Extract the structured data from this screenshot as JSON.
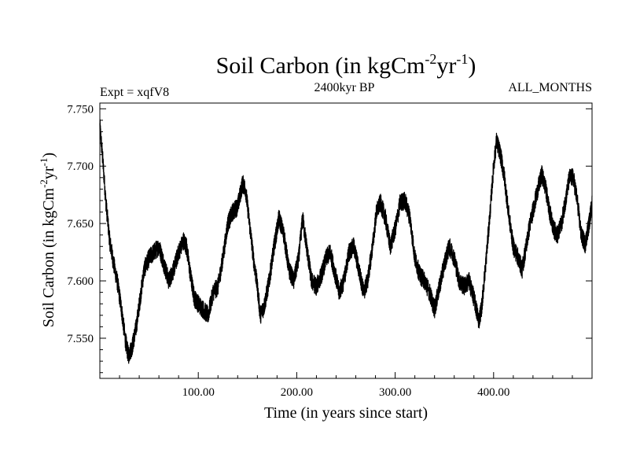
{
  "chart_data": {
    "type": "line",
    "title": {
      "main": "Soil Carbon (in kgCm",
      "sup1": "-2",
      "mid": "yr",
      "sup2": "-1",
      "end": ")"
    },
    "subtitle_left": "Expt = xqfV8",
    "subtitle_center": "2400kyr BP",
    "subtitle_right": "ALL_MONTHS",
    "xlabel": "Time (in years since start)",
    "ylabel": {
      "main": "Soil Carbon (in kgCm",
      "sup1": "-2",
      "mid": "yr",
      "sup2": "-1",
      "end": ")"
    },
    "xlim": [
      0,
      500
    ],
    "ylim": [
      7.515,
      7.755
    ],
    "x_ticks": [
      100,
      200,
      300,
      400
    ],
    "x_tick_labels": [
      "100.00",
      "200.00",
      "300.00",
      "400.00"
    ],
    "y_ticks": [
      7.55,
      7.6,
      7.65,
      7.7,
      7.75
    ],
    "y_tick_labels": [
      "7.550",
      "7.600",
      "7.650",
      "7.700",
      "7.750"
    ],
    "grid": false,
    "series": [
      {
        "name": "Soil Carbon",
        "color": "#000000",
        "noise_amplitude": 0.008,
        "anchors": [
          [
            0,
            7.735
          ],
          [
            3,
            7.705
          ],
          [
            6,
            7.67
          ],
          [
            10,
            7.635
          ],
          [
            14,
            7.615
          ],
          [
            18,
            7.598
          ],
          [
            22,
            7.575
          ],
          [
            26,
            7.548
          ],
          [
            29,
            7.535
          ],
          [
            33,
            7.543
          ],
          [
            37,
            7.56
          ],
          [
            41,
            7.585
          ],
          [
            45,
            7.61
          ],
          [
            50,
            7.62
          ],
          [
            55,
            7.625
          ],
          [
            60,
            7.63
          ],
          [
            65,
            7.615
          ],
          [
            70,
            7.6
          ],
          [
            75,
            7.61
          ],
          [
            80,
            7.625
          ],
          [
            85,
            7.635
          ],
          [
            88,
            7.63
          ],
          [
            92,
            7.605
          ],
          [
            96,
            7.585
          ],
          [
            100,
            7.58
          ],
          [
            105,
            7.575
          ],
          [
            110,
            7.57
          ],
          [
            115,
            7.59
          ],
          [
            120,
            7.595
          ],
          [
            125,
            7.62
          ],
          [
            130,
            7.65
          ],
          [
            135,
            7.66
          ],
          [
            140,
            7.665
          ],
          [
            145,
            7.685
          ],
          [
            148,
            7.68
          ],
          [
            152,
            7.65
          ],
          [
            156,
            7.62
          ],
          [
            160,
            7.595
          ],
          [
            163,
            7.57
          ],
          [
            167,
            7.578
          ],
          [
            172,
            7.6
          ],
          [
            177,
            7.63
          ],
          [
            182,
            7.655
          ],
          [
            187,
            7.64
          ],
          [
            192,
            7.61
          ],
          [
            197,
            7.6
          ],
          [
            202,
            7.62
          ],
          [
            206,
            7.655
          ],
          [
            210,
            7.63
          ],
          [
            215,
            7.6
          ],
          [
            220,
            7.595
          ],
          [
            225,
            7.605
          ],
          [
            230,
            7.62
          ],
          [
            234,
            7.625
          ],
          [
            238,
            7.61
          ],
          [
            243,
            7.59
          ],
          [
            248,
            7.6
          ],
          [
            253,
            7.625
          ],
          [
            258,
            7.63
          ],
          [
            263,
            7.61
          ],
          [
            268,
            7.59
          ],
          [
            272,
            7.6
          ],
          [
            277,
            7.63
          ],
          [
            281,
            7.66
          ],
          [
            285,
            7.668
          ],
          [
            290,
            7.655
          ],
          [
            295,
            7.63
          ],
          [
            300,
            7.645
          ],
          [
            305,
            7.668
          ],
          [
            310,
            7.67
          ],
          [
            315,
            7.655
          ],
          [
            320,
            7.62
          ],
          [
            325,
            7.605
          ],
          [
            330,
            7.6
          ],
          [
            335,
            7.59
          ],
          [
            340,
            7.575
          ],
          [
            345,
            7.595
          ],
          [
            350,
            7.615
          ],
          [
            355,
            7.63
          ],
          [
            360,
            7.62
          ],
          [
            365,
            7.6
          ],
          [
            370,
            7.595
          ],
          [
            375,
            7.6
          ],
          [
            380,
            7.585
          ],
          [
            385,
            7.565
          ],
          [
            388,
            7.578
          ],
          [
            392,
            7.615
          ],
          [
            396,
            7.655
          ],
          [
            400,
            7.7
          ],
          [
            403,
            7.722
          ],
          [
            407,
            7.71
          ],
          [
            411,
            7.69
          ],
          [
            415,
            7.66
          ],
          [
            420,
            7.63
          ],
          [
            425,
            7.62
          ],
          [
            429,
            7.61
          ],
          [
            433,
            7.63
          ],
          [
            437,
            7.65
          ],
          [
            441,
            7.665
          ],
          [
            445,
            7.68
          ],
          [
            449,
            7.693
          ],
          [
            453,
            7.68
          ],
          [
            457,
            7.66
          ],
          [
            461,
            7.645
          ],
          [
            465,
            7.64
          ],
          [
            469,
            7.65
          ],
          [
            473,
            7.67
          ],
          [
            477,
            7.69
          ],
          [
            481,
            7.69
          ],
          [
            485,
            7.67
          ],
          [
            489,
            7.64
          ],
          [
            493,
            7.632
          ],
          [
            497,
            7.65
          ],
          [
            500,
            7.668
          ]
        ]
      }
    ]
  }
}
